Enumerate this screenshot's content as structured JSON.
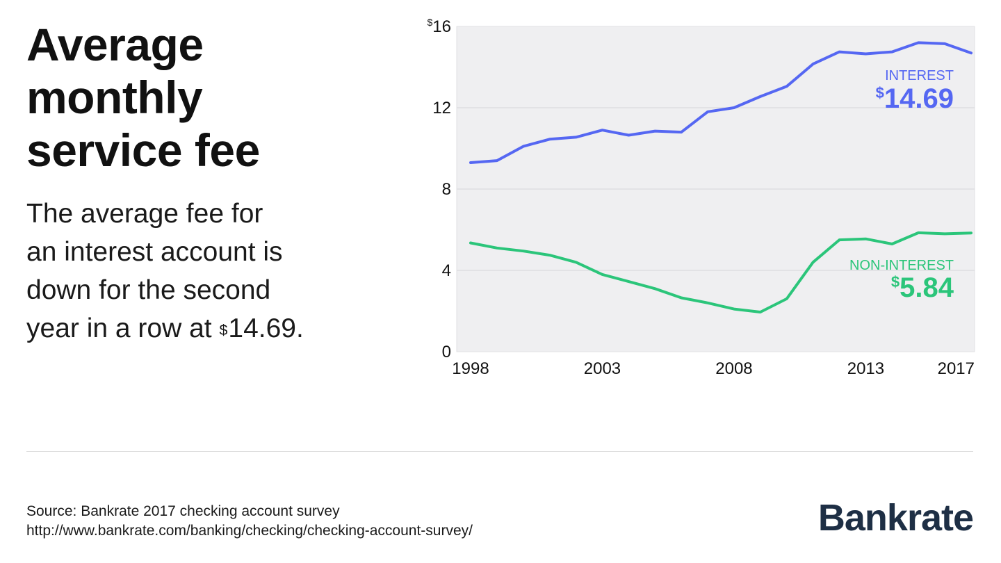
{
  "title_lines": [
    "Average",
    "monthly",
    "service fee"
  ],
  "subtitle": {
    "line1": "The average fee for",
    "line2": "an interest account is",
    "line3": "down for the second",
    "line4_prefix": "year in a row at ",
    "line4_dollar": "$",
    "line4_value": "14.69."
  },
  "source": {
    "line1": "Source: Bankrate 2017 checking account survey",
    "line2": "http://www.bankrate.com/banking/checking/checking-account-survey/"
  },
  "logo": "Bankrate",
  "colors": {
    "interest": "#5567f2",
    "non_interest": "#2bc57a",
    "plot_bg": "#efeff1",
    "grid": "#d6d6d9",
    "text": "#111111"
  },
  "chart_data": {
    "type": "line",
    "x": [
      1998,
      1999,
      2000,
      2001,
      2002,
      2003,
      2004,
      2005,
      2006,
      2007,
      2008,
      2009,
      2010,
      2011,
      2012,
      2013,
      2014,
      2015,
      2016,
      2017
    ],
    "series": [
      {
        "name": "INTEREST",
        "color_key": "interest",
        "values": [
          9.3,
          9.4,
          10.1,
          10.45,
          10.55,
          10.9,
          10.65,
          10.85,
          10.8,
          11.8,
          12.0,
          12.55,
          13.05,
          14.15,
          14.75,
          14.65,
          14.75,
          15.2,
          15.15,
          14.69
        ],
        "end_label": "INTEREST",
        "end_dollar": "$",
        "end_value": "14.69"
      },
      {
        "name": "NON-INTEREST",
        "color_key": "non_interest",
        "values": [
          5.35,
          5.1,
          4.95,
          4.75,
          4.4,
          3.8,
          3.45,
          3.1,
          2.65,
          2.4,
          2.1,
          1.95,
          2.6,
          4.4,
          5.5,
          5.55,
          5.3,
          5.85,
          5.8,
          5.84
        ],
        "end_label": "NON-INTEREST",
        "end_dollar": "$",
        "end_value": "5.84"
      }
    ],
    "y_ticks": [
      {
        "value": 16,
        "label": "16",
        "dollar": "$"
      },
      {
        "value": 12,
        "label": "12",
        "dollar": ""
      },
      {
        "value": 8,
        "label": "8",
        "dollar": ""
      },
      {
        "value": 4,
        "label": "4",
        "dollar": ""
      },
      {
        "value": 0,
        "label": "0",
        "dollar": ""
      }
    ],
    "x_ticks": [
      1998,
      2003,
      2008,
      2013,
      2017
    ],
    "ylim": [
      0,
      16
    ],
    "xlim": [
      1998,
      2017
    ],
    "grid": true,
    "title": "",
    "xlabel": "",
    "ylabel": ""
  }
}
